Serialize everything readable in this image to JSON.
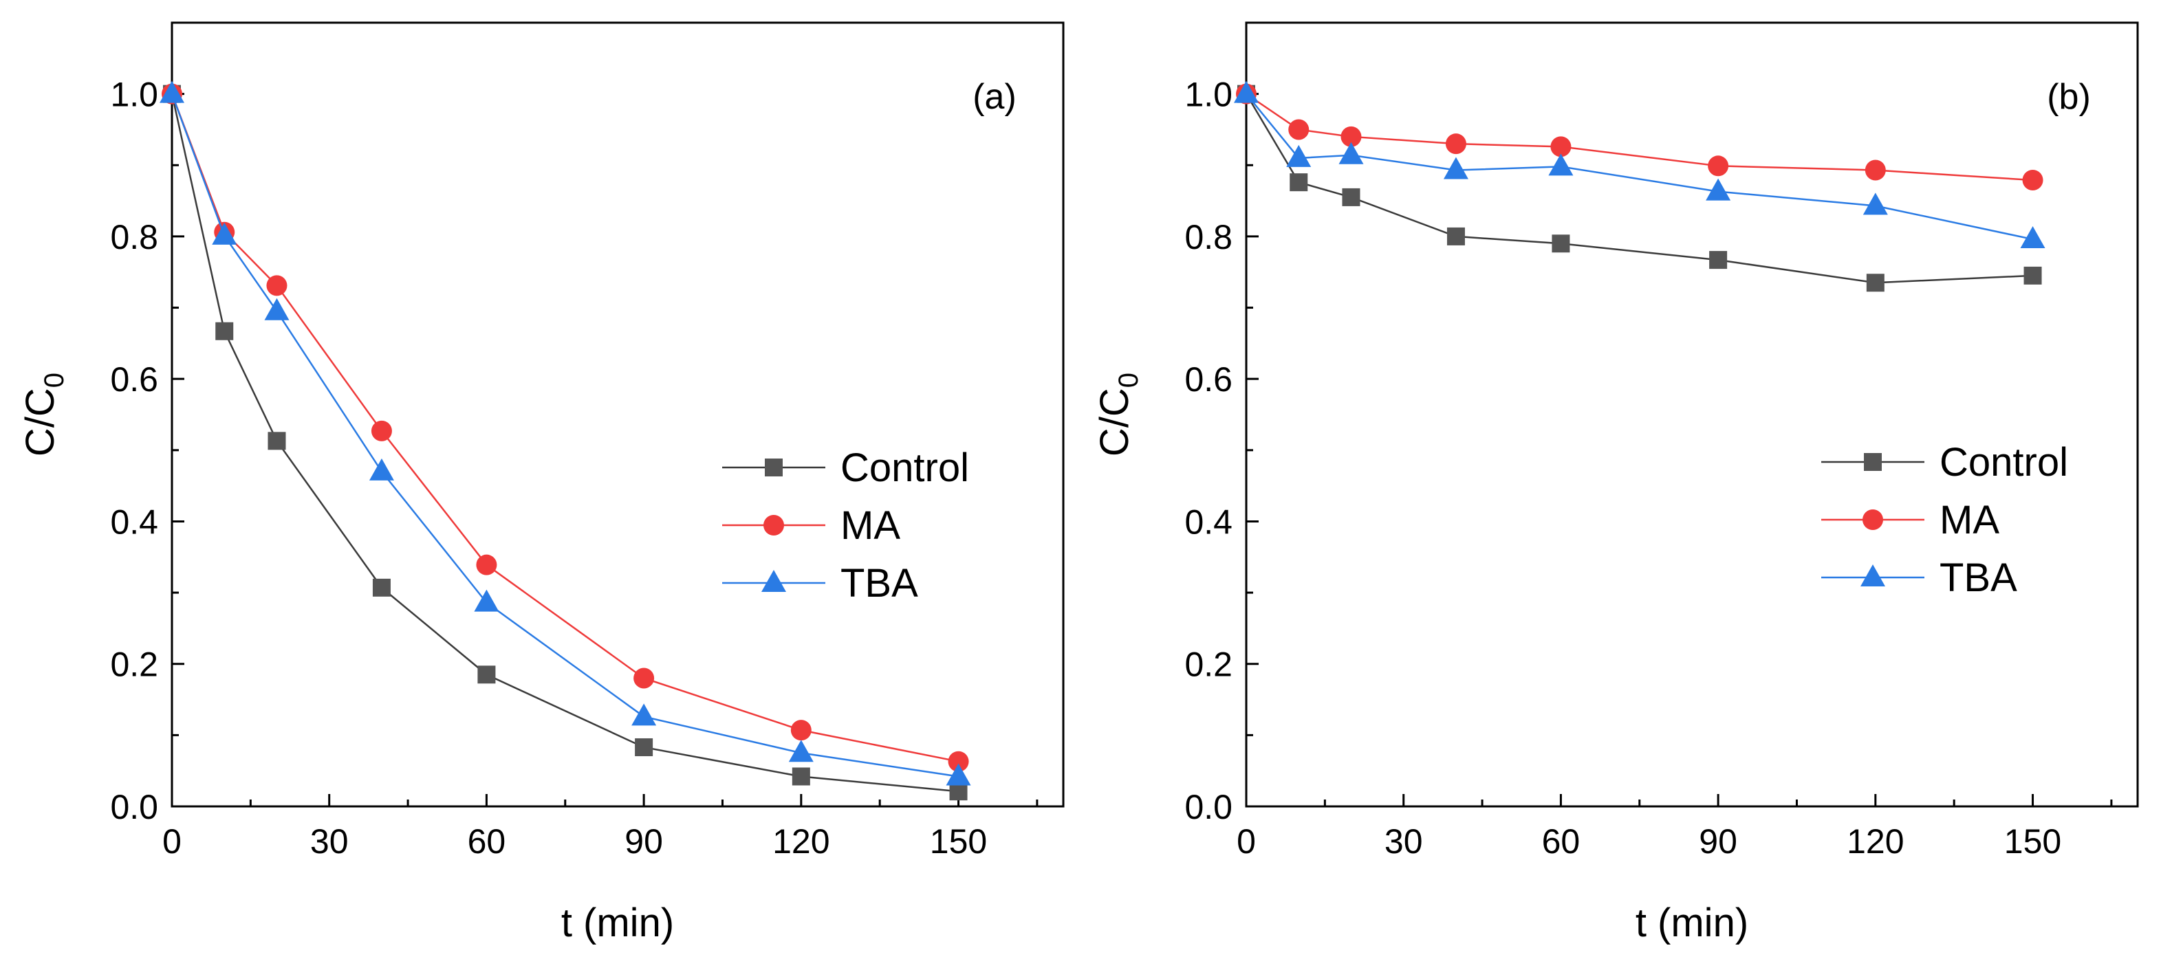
{
  "chart_data": [
    {
      "type": "line",
      "panel_label": "(a)",
      "xlabel": "t (min)",
      "ylabel": {
        "main": "C/C",
        "subscript": "0"
      },
      "xlim": [
        0,
        170
      ],
      "ylim": [
        0,
        1.1
      ],
      "xticks": [
        0,
        30,
        60,
        90,
        120,
        150
      ],
      "xtick_labels": [
        "0",
        "30",
        "60",
        "90",
        "120",
        "150"
      ],
      "yticks": [
        0,
        0.2,
        0.4,
        0.6,
        0.8,
        1.0
      ],
      "ytick_labels": [
        "0.0",
        "0.2",
        "0.4",
        "0.6",
        "0.8",
        "1.0"
      ],
      "grid": false,
      "legend_position": "center-right",
      "x": [
        0,
        10,
        20,
        40,
        60,
        90,
        120,
        150
      ],
      "series": [
        {
          "name": "Control",
          "marker": "square",
          "color": "#555555",
          "line_color": "#3a3a3a",
          "values": [
            1.0,
            0.667,
            0.513,
            0.307,
            0.185,
            0.083,
            0.042,
            0.021
          ]
        },
        {
          "name": "MA",
          "marker": "circle",
          "color": "#ef3a3a",
          "line_color": "#ef3a3a",
          "values": [
            1.0,
            0.806,
            0.731,
            0.527,
            0.339,
            0.18,
            0.107,
            0.063
          ]
        },
        {
          "name": "TBA",
          "marker": "triangle",
          "color": "#2a7be4",
          "line_color": "#2a7be4",
          "values": [
            1.0,
            0.801,
            0.695,
            0.47,
            0.286,
            0.126,
            0.075,
            0.042
          ]
        }
      ]
    },
    {
      "type": "line",
      "panel_label": "(b)",
      "xlabel": "t (min)",
      "ylabel": {
        "main": "C/C",
        "subscript": "0"
      },
      "xlim": [
        0,
        170
      ],
      "ylim": [
        0,
        1.1
      ],
      "xticks": [
        0,
        30,
        60,
        90,
        120,
        150
      ],
      "xtick_labels": [
        "0",
        "30",
        "60",
        "90",
        "120",
        "150"
      ],
      "yticks": [
        0,
        0.2,
        0.4,
        0.6,
        0.8,
        1.0
      ],
      "ytick_labels": [
        "0.0",
        "0.2",
        "0.4",
        "0.6",
        "0.8",
        "1.0"
      ],
      "grid": false,
      "legend_position": "center-right",
      "x": [
        0,
        10,
        20,
        40,
        60,
        90,
        120,
        150
      ],
      "series": [
        {
          "name": "Control",
          "marker": "square",
          "color": "#555555",
          "line_color": "#3a3a3a",
          "values": [
            1.0,
            0.876,
            0.855,
            0.8,
            0.79,
            0.767,
            0.735,
            0.745
          ]
        },
        {
          "name": "MA",
          "marker": "circle",
          "color": "#ef3a3a",
          "line_color": "#ef3a3a",
          "values": [
            1.0,
            0.95,
            0.94,
            0.93,
            0.926,
            0.899,
            0.893,
            0.879
          ]
        },
        {
          "name": "TBA",
          "marker": "triangle",
          "color": "#2a7be4",
          "line_color": "#2a7be4",
          "values": [
            1.0,
            0.91,
            0.914,
            0.893,
            0.898,
            0.863,
            0.843,
            0.796
          ]
        }
      ]
    }
  ]
}
